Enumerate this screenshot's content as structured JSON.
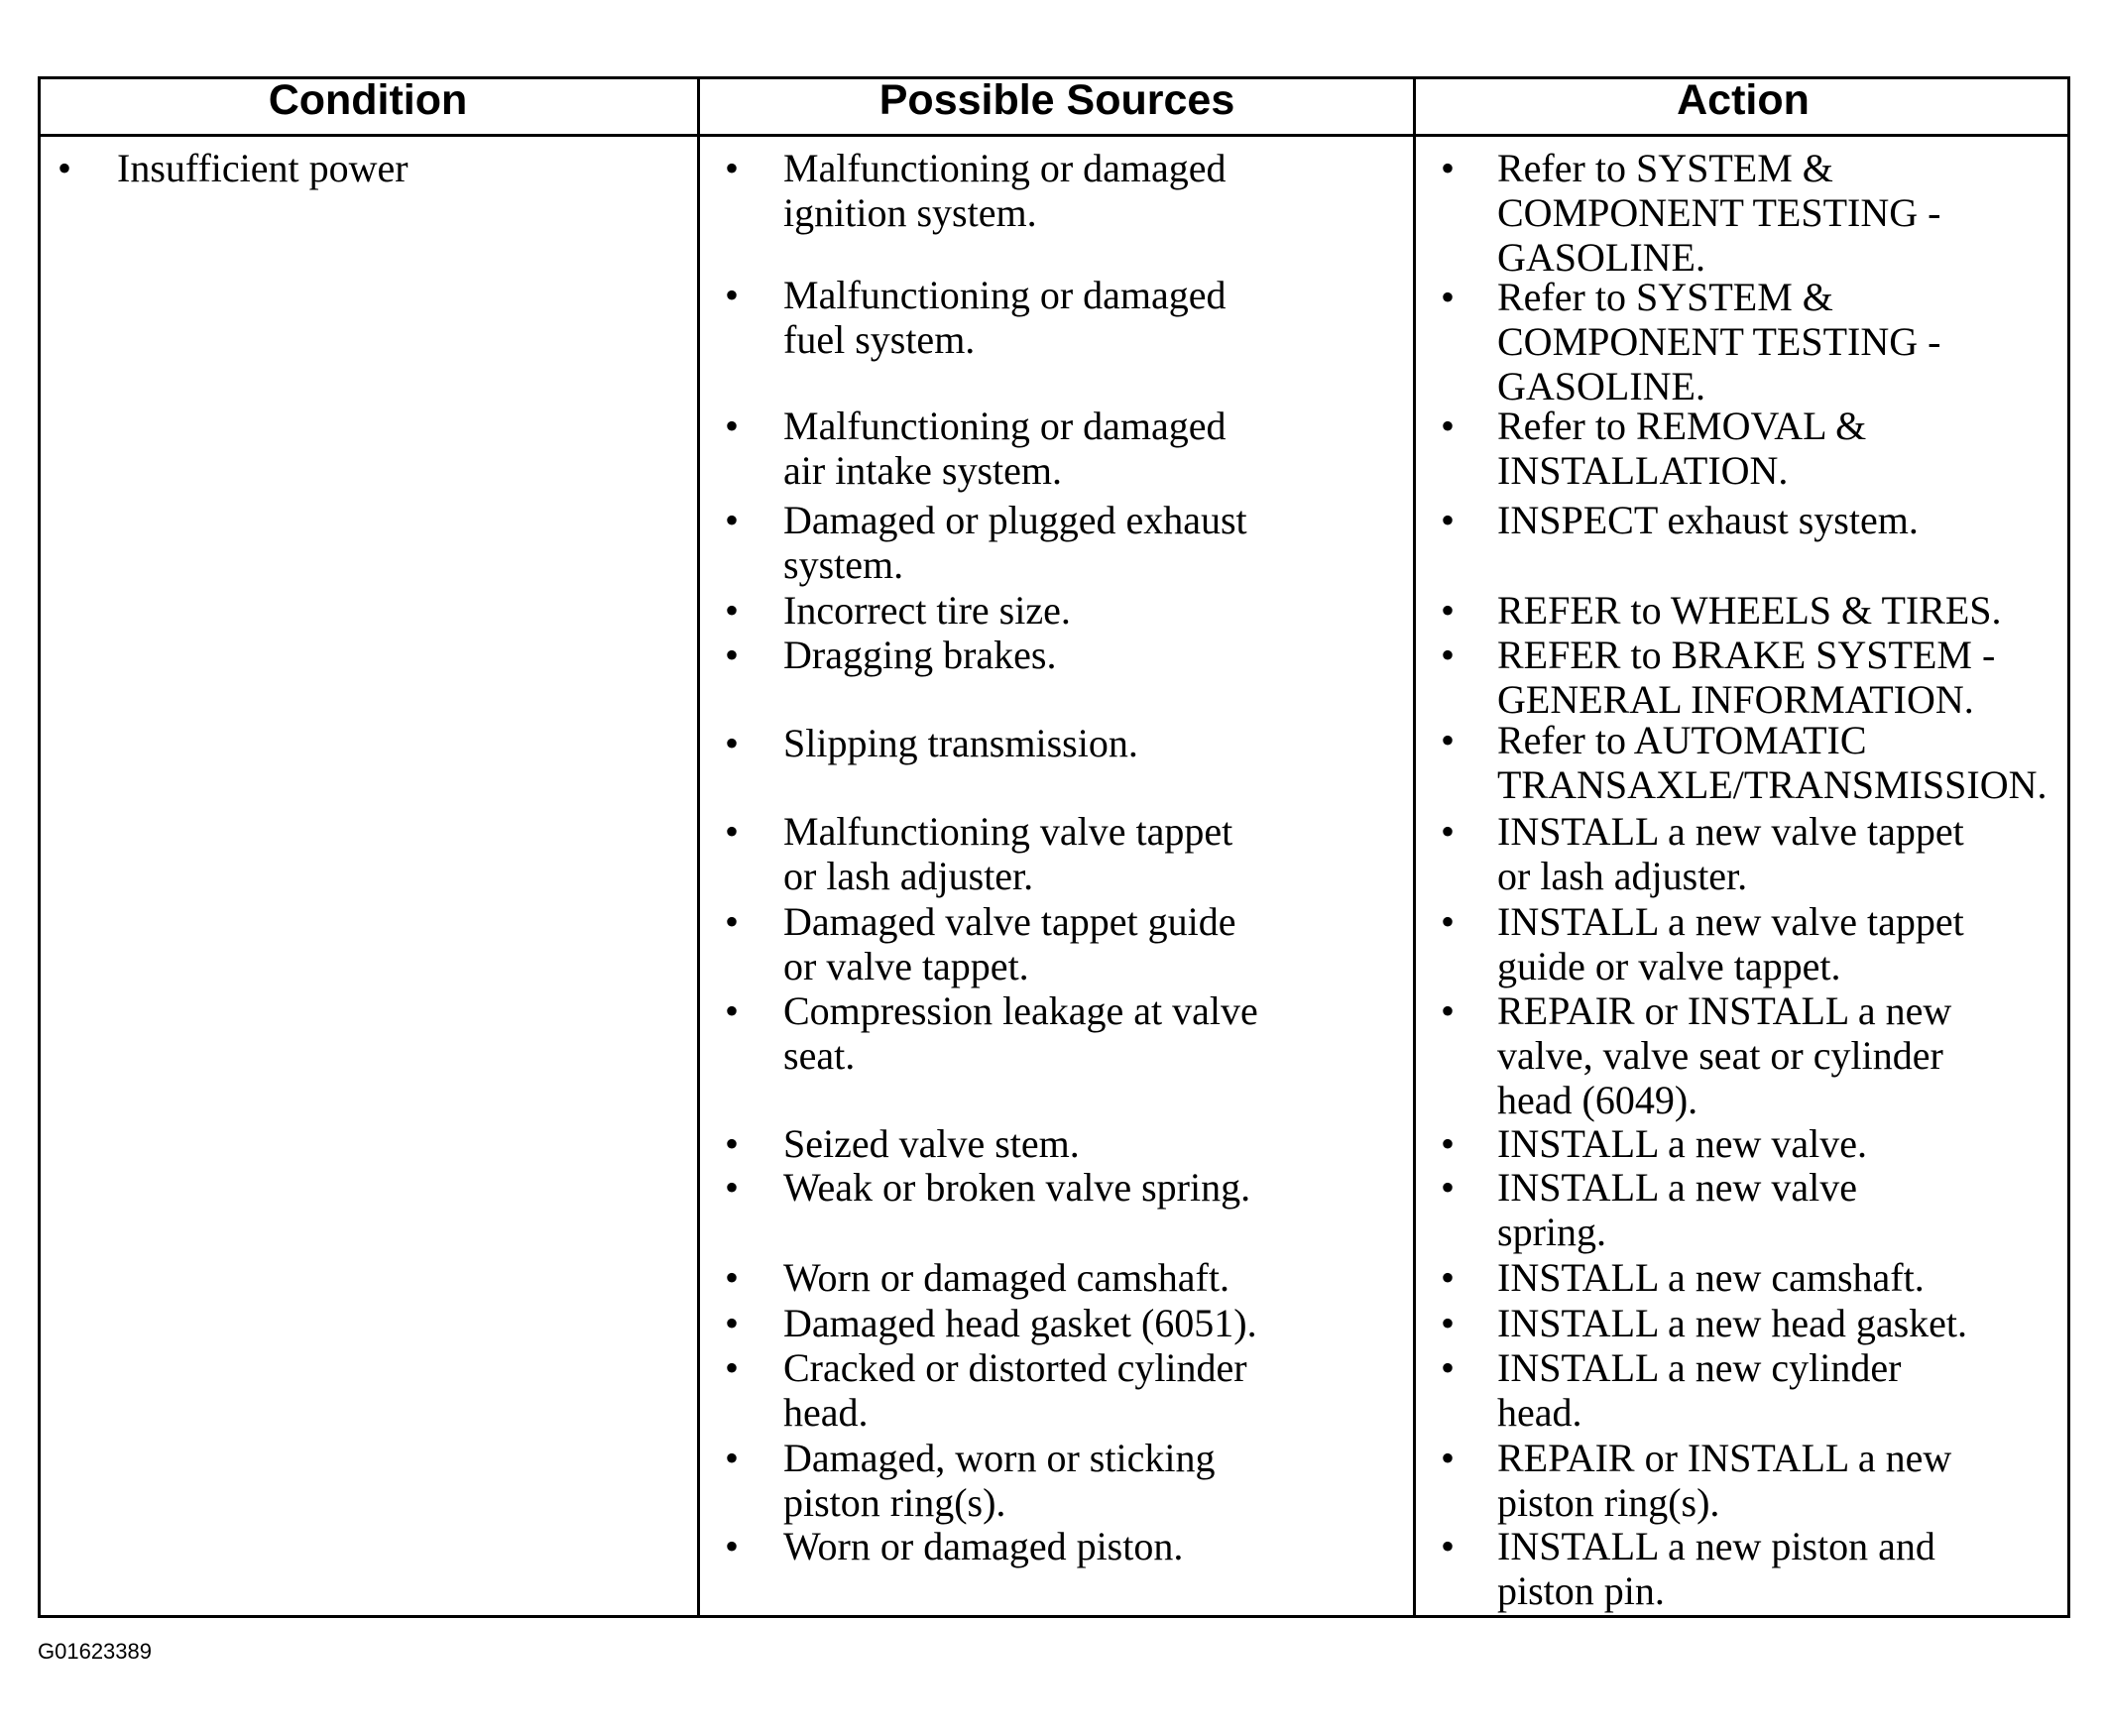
{
  "table": {
    "headers": [
      "Condition",
      "Possible Sources",
      "Action"
    ],
    "condition": "Insufficient power",
    "rows": [
      {
        "source": [
          "Malfunctioning or damaged",
          "ignition system."
        ],
        "action": [
          "Refer to SYSTEM &",
          "COMPONENT TESTING -",
          "GASOLINE."
        ]
      },
      {
        "source": [
          "Malfunctioning or damaged",
          "fuel system."
        ],
        "action": [
          "Refer to SYSTEM &",
          "COMPONENT TESTING -",
          "GASOLINE."
        ]
      },
      {
        "source": [
          "Malfunctioning or damaged",
          "air intake system."
        ],
        "action": [
          "Refer to REMOVAL &",
          "INSTALLATION."
        ]
      },
      {
        "source": [
          "Damaged or plugged exhaust",
          "system."
        ],
        "action": [
          "INSPECT exhaust system."
        ]
      },
      {
        "source": [
          "Incorrect tire size."
        ],
        "action": [
          "REFER to WHEELS & TIRES."
        ]
      },
      {
        "source": [
          "Dragging brakes."
        ],
        "action": [
          "REFER to BRAKE SYSTEM -",
          "GENERAL INFORMATION."
        ]
      },
      {
        "source": [
          "Slipping transmission."
        ],
        "action": [
          "Refer to AUTOMATIC",
          "TRANSAXLE/TRANSMISSION."
        ]
      },
      {
        "source": [
          "Malfunctioning valve tappet",
          "or lash adjuster."
        ],
        "action": [
          "INSTALL a new valve tappet",
          "or lash adjuster."
        ]
      },
      {
        "source": [
          "Damaged valve tappet guide",
          "or valve tappet."
        ],
        "action": [
          "INSTALL a new valve tappet",
          "guide or valve tappet."
        ]
      },
      {
        "source": [
          "Compression leakage at valve",
          "seat."
        ],
        "action": [
          "REPAIR or INSTALL a new",
          "valve, valve seat or cylinder",
          "head (6049)."
        ]
      },
      {
        "source": [
          "Seized valve stem."
        ],
        "action": [
          "INSTALL a new valve."
        ]
      },
      {
        "source": [
          "Weak or broken valve spring."
        ],
        "action": [
          "INSTALL a new valve",
          "spring."
        ]
      },
      {
        "source": [
          "Worn or damaged camshaft."
        ],
        "action": [
          "INSTALL a new camshaft."
        ]
      },
      {
        "source": [
          "Damaged head gasket (6051)."
        ],
        "action": [
          "INSTALL a new head gasket."
        ]
      },
      {
        "source": [
          "Cracked or distorted cylinder",
          "head."
        ],
        "action": [
          "INSTALL a new cylinder",
          "head."
        ]
      },
      {
        "source": [
          "Damaged, worn or sticking",
          "piston ring(s)."
        ],
        "action": [
          "REPAIR or INSTALL a new",
          "piston ring(s)."
        ]
      },
      {
        "source": [
          "Worn or damaged piston."
        ],
        "action": [
          "INSTALL a new piston and",
          "piston pin."
        ]
      }
    ]
  },
  "footer": "G01623389"
}
